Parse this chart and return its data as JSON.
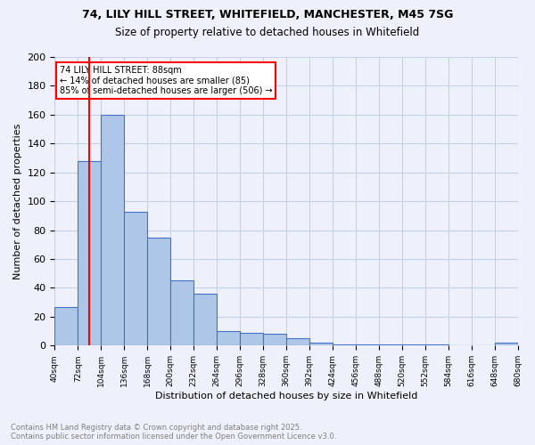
{
  "title_line1": "74, LILY HILL STREET, WHITEFIELD, MANCHESTER, M45 7SG",
  "title_line2": "Size of property relative to detached houses in Whitefield",
  "xlabel": "Distribution of detached houses by size in Whitefield",
  "ylabel": "Number of detached properties",
  "categories": [
    "40sqm",
    "72sqm",
    "104sqm",
    "136sqm",
    "168sqm",
    "200sqm",
    "232sqm",
    "264sqm",
    "296sqm",
    "328sqm",
    "360sqm",
    "392sqm",
    "424sqm",
    "456sqm",
    "488sqm",
    "520sqm",
    "552sqm",
    "584sqm",
    "616sqm",
    "648sqm",
    "680sqm"
  ],
  "heights": [
    27,
    128,
    160,
    93,
    75,
    45,
    36,
    10,
    9,
    8,
    5,
    2,
    1,
    1,
    1,
    1,
    1,
    0,
    0,
    2
  ],
  "bar_color": "#aec6e8",
  "bar_edge_color": "#4472c4",
  "vline_x": 1.5,
  "vline_color": "red",
  "annotation_title": "74 LILY HILL STREET: 88sqm",
  "annotation_line1": "← 14% of detached houses are smaller (85)",
  "annotation_line2": "85% of semi-detached houses are larger (506) →",
  "footer_line1": "Contains HM Land Registry data © Crown copyright and database right 2025.",
  "footer_line2": "Contains public sector information licensed under the Open Government Licence v3.0.",
  "ylim": [
    0,
    200
  ],
  "yticks": [
    0,
    20,
    40,
    60,
    80,
    100,
    120,
    140,
    160,
    180,
    200
  ],
  "background_color": "#eef1fb",
  "grid_color": "#c8d0e8"
}
